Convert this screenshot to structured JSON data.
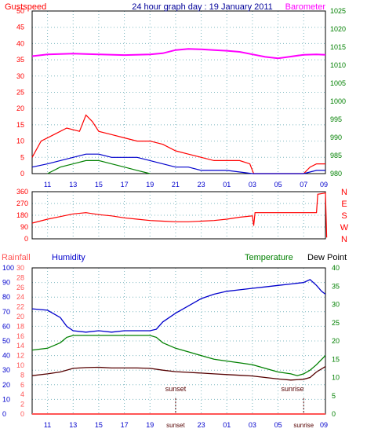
{
  "header": {
    "gustspeed_label": "Gustspeed",
    "title": "24 hour graph day : 19 January 2011",
    "barometer_label": "Barometer"
  },
  "colors": {
    "gust": "#ff0000",
    "wind": "#0000cc",
    "calm": "#008000",
    "pressure": "#ff00ff",
    "direction": "#ff0000",
    "humidity": "#0000cc",
    "temperature": "#008000",
    "dewpoint": "#550000",
    "rain": "#ff5555",
    "axis_green": "#008000",
    "axis_blue": "#0000cc",
    "axis_red": "#ff0000",
    "grid": "#7fb8c0"
  },
  "time_labels": [
    "11",
    "13",
    "15",
    "17",
    "19",
    "21",
    "23",
    "01",
    "03",
    "05",
    "07",
    "09"
  ],
  "chart_data": [
    {
      "type": "line",
      "id": "wind-chart",
      "y_left": {
        "label": "Gustspeed",
        "ticks": [
          "0",
          "5",
          "10",
          "15",
          "20",
          "25",
          "30",
          "35",
          "40",
          "45",
          "50"
        ],
        "ylim": [
          0,
          50
        ]
      },
      "y_right": {
        "label": "Barometer",
        "ticks": [
          "980",
          "985",
          "990",
          "995",
          "1000",
          "1005",
          "1010",
          "1015",
          "1020",
          "1025"
        ],
        "ylim": [
          980,
          1025
        ]
      },
      "x": {
        "ticks": [
          "11",
          "13",
          "15",
          "17",
          "19",
          "21",
          "23",
          "01",
          "03",
          "05",
          "07",
          "09"
        ]
      },
      "grid": true,
      "series": [
        {
          "name": "Gustspeed",
          "axis": "left",
          "color": "#ff0000",
          "points": [
            [
              9.8,
              5
            ],
            [
              10.5,
              10
            ],
            [
              11.5,
              12
            ],
            [
              12.5,
              14
            ],
            [
              13.5,
              13
            ],
            [
              14,
              18
            ],
            [
              14.5,
              16
            ],
            [
              15,
              13
            ],
            [
              16,
              12
            ],
            [
              17,
              11
            ],
            [
              18,
              10
            ],
            [
              19,
              10
            ],
            [
              20,
              9
            ],
            [
              21,
              7
            ],
            [
              22,
              6
            ],
            [
              23,
              5
            ],
            [
              24,
              4
            ],
            [
              25,
              4
            ],
            [
              26,
              4
            ],
            [
              26.8,
              3
            ],
            [
              27.1,
              0
            ],
            [
              31,
              0
            ],
            [
              31.5,
              2
            ],
            [
              32,
              3
            ],
            [
              32.7,
              3
            ]
          ]
        },
        {
          "name": "",
          "axis": "left",
          "color": "#0000cc",
          "points": [
            [
              9.8,
              2
            ],
            [
              11,
              3
            ],
            [
              12,
              4
            ],
            [
              13,
              5
            ],
            [
              14,
              6
            ],
            [
              15,
              6
            ],
            [
              16,
              5
            ],
            [
              17,
              5
            ],
            [
              18,
              5
            ],
            [
              19,
              4
            ],
            [
              20,
              3
            ],
            [
              21,
              2
            ],
            [
              22,
              2
            ],
            [
              23,
              1
            ],
            [
              24,
              1
            ],
            [
              25,
              1
            ],
            [
              27,
              0
            ],
            [
              31,
              0
            ],
            [
              32,
              1
            ],
            [
              32.7,
              1
            ]
          ]
        },
        {
          "name": "",
          "axis": "left",
          "color": "#008000",
          "points": [
            [
              11,
              0
            ],
            [
              12,
              2
            ],
            [
              13,
              3
            ],
            [
              14,
              4
            ],
            [
              15,
              4
            ],
            [
              16,
              3
            ],
            [
              17,
              2
            ],
            [
              18,
              1
            ],
            [
              19,
              0
            ]
          ]
        },
        {
          "name": "Barometer",
          "axis": "right",
          "color": "#ff00ff",
          "points": [
            [
              9.8,
              1012.5
            ],
            [
              11,
              1013
            ],
            [
              13,
              1013.2
            ],
            [
              15,
              1013
            ],
            [
              17,
              1012.8
            ],
            [
              19,
              1013
            ],
            [
              20,
              1013.3
            ],
            [
              21,
              1014.2
            ],
            [
              22,
              1014.5
            ],
            [
              23,
              1014.4
            ],
            [
              24,
              1014.2
            ],
            [
              25,
              1014
            ],
            [
              26,
              1013.7
            ],
            [
              27,
              1013
            ],
            [
              28,
              1012.3
            ],
            [
              29,
              1011.9
            ],
            [
              30,
              1012.4
            ],
            [
              31,
              1012.9
            ],
            [
              32,
              1013
            ],
            [
              32.7,
              1012.9
            ]
          ]
        }
      ]
    },
    {
      "type": "line",
      "id": "direction-chart",
      "y_left": {
        "ticks": [
          "0",
          "90",
          "180",
          "270",
          "360"
        ],
        "ylim": [
          0,
          360
        ]
      },
      "y_right": {
        "ticks": [
          "N",
          "W",
          "S",
          "E",
          "N"
        ]
      },
      "grid": true,
      "series": [
        {
          "name": "",
          "axis": "left",
          "color": "#ff0000",
          "points": [
            [
              9.8,
              120
            ],
            [
              11,
              150
            ],
            [
              12,
              170
            ],
            [
              13,
              190
            ],
            [
              14,
              200
            ],
            [
              15,
              185
            ],
            [
              16,
              175
            ],
            [
              17,
              160
            ],
            [
              18,
              150
            ],
            [
              19,
              140
            ],
            [
              20,
              135
            ],
            [
              21,
              130
            ],
            [
              22,
              130
            ],
            [
              23,
              135
            ],
            [
              24,
              140
            ],
            [
              25,
              150
            ],
            [
              26,
              165
            ],
            [
              27,
              175
            ],
            [
              27.1,
              100
            ],
            [
              27.2,
              200
            ],
            [
              28,
              200
            ],
            [
              29,
              200
            ],
            [
              30,
              200
            ],
            [
              31,
              200
            ],
            [
              32,
              200
            ],
            [
              32.1,
              340
            ],
            [
              32.7,
              350
            ],
            [
              32.8,
              10
            ]
          ]
        }
      ]
    },
    {
      "type": "line",
      "id": "temperature-chart",
      "legend": [
        "Rainfall",
        "Humidity",
        "Temperature",
        "Dew Point"
      ],
      "y_left_humidity": {
        "label": "Humidity",
        "ticks": [
          "0",
          "10",
          "20",
          "30",
          "40",
          "50",
          "60",
          "70",
          "80",
          "90",
          "100"
        ],
        "ylim": [
          0,
          100
        ]
      },
      "y_left_rain": {
        "label": "Rainfall",
        "ticks": [
          "0",
          "2",
          "4",
          "6",
          "8",
          "10",
          "12",
          "14",
          "16",
          "18",
          "20",
          "22",
          "24",
          "26",
          "28",
          "30"
        ],
        "ylim": [
          0,
          30
        ]
      },
      "y_right": {
        "label": "Temperature",
        "ticks": [
          "0",
          "5",
          "10",
          "15",
          "20",
          "25",
          "30",
          "35",
          "40"
        ],
        "ylim": [
          0,
          40
        ]
      },
      "x": {
        "ticks": [
          "11",
          "13",
          "15",
          "17",
          "19",
          "sunset",
          "23",
          "01",
          "03",
          "05",
          "sunrise",
          "09"
        ]
      },
      "annotations": {
        "sunset": "sunset",
        "sunrise": "sunrise"
      },
      "grid": true,
      "series": [
        {
          "name": "Humidity",
          "axis": "humidity",
          "color": "#0000cc",
          "points": [
            [
              9.8,
              72
            ],
            [
              11,
              71
            ],
            [
              12,
              66
            ],
            [
              12.5,
              60
            ],
            [
              13,
              57
            ],
            [
              14,
              56
            ],
            [
              15,
              57
            ],
            [
              16,
              56
            ],
            [
              17,
              57
            ],
            [
              18,
              57
            ],
            [
              19,
              57
            ],
            [
              19.5,
              58
            ],
            [
              20,
              63
            ],
            [
              21,
              69
            ],
            [
              22,
              74
            ],
            [
              23,
              79
            ],
            [
              24,
              82
            ],
            [
              25,
              84
            ],
            [
              26,
              85
            ],
            [
              27,
              86
            ],
            [
              28,
              87
            ],
            [
              29,
              88
            ],
            [
              30,
              89
            ],
            [
              31,
              90
            ],
            [
              31.5,
              92
            ],
            [
              32,
              88
            ],
            [
              32.4,
              84
            ],
            [
              32.7,
              82
            ]
          ]
        },
        {
          "name": "Temperature",
          "axis": "temp",
          "color": "#008000",
          "points": [
            [
              9.8,
              17.5
            ],
            [
              11,
              18
            ],
            [
              12,
              19.5
            ],
            [
              12.5,
              21
            ],
            [
              13,
              21.5
            ],
            [
              14,
              21.5
            ],
            [
              15,
              21.5
            ],
            [
              16,
              21.5
            ],
            [
              17,
              21.5
            ],
            [
              18,
              21.5
            ],
            [
              19,
              21.5
            ],
            [
              19.5,
              21
            ],
            [
              20,
              19.5
            ],
            [
              21,
              18
            ],
            [
              22,
              17
            ],
            [
              23,
              16
            ],
            [
              24,
              15
            ],
            [
              25,
              14.5
            ],
            [
              26,
              14
            ],
            [
              27,
              13.5
            ],
            [
              28,
              12.5
            ],
            [
              29,
              11.5
            ],
            [
              30,
              11
            ],
            [
              30.5,
              10.5
            ],
            [
              31,
              11
            ],
            [
              31.5,
              12
            ],
            [
              32,
              13.5
            ],
            [
              32.7,
              16
            ]
          ]
        },
        {
          "name": "Dew Point",
          "axis": "temp",
          "color": "#550000",
          "points": [
            [
              9.8,
              10.5
            ],
            [
              11,
              11
            ],
            [
              12,
              11.5
            ],
            [
              13,
              12.5
            ],
            [
              14,
              12.7
            ],
            [
              15,
              12.8
            ],
            [
              16,
              12.6
            ],
            [
              17,
              12.6
            ],
            [
              18,
              12.6
            ],
            [
              19,
              12.5
            ],
            [
              20,
              12
            ],
            [
              21,
              11.6
            ],
            [
              22,
              11.4
            ],
            [
              23,
              11.2
            ],
            [
              24,
              11
            ],
            [
              25,
              10.8
            ],
            [
              26,
              10.6
            ],
            [
              27,
              10.4
            ],
            [
              28,
              10
            ],
            [
              29,
              9.6
            ],
            [
              30,
              9.3
            ],
            [
              31,
              9.5
            ],
            [
              31.5,
              10
            ],
            [
              32,
              11.5
            ],
            [
              32.7,
              13
            ]
          ]
        },
        {
          "name": "Rainfall",
          "axis": "rain",
          "color": "#ff5555",
          "points": [
            [
              9.8,
              0
            ],
            [
              32.7,
              0
            ]
          ]
        }
      ]
    }
  ]
}
